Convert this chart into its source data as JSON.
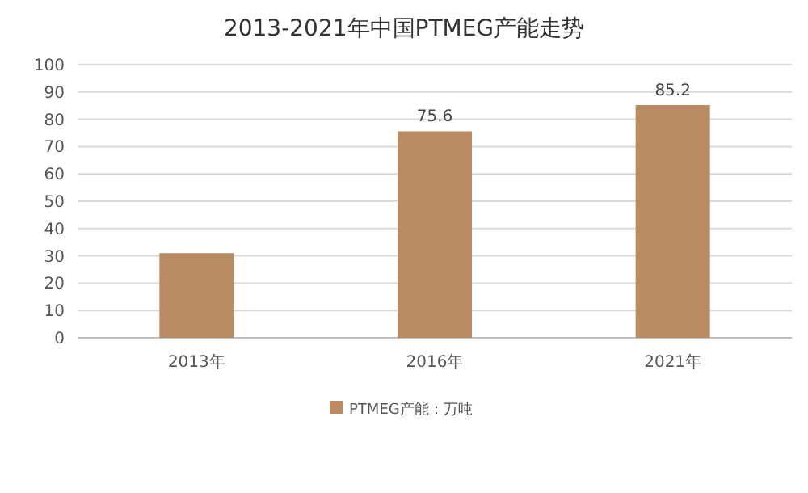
{
  "chart_data": {
    "type": "bar",
    "title": "2013-2021年中国PTMEG产能走势",
    "categories": [
      "2013年",
      "2016年",
      "2021年"
    ],
    "series": [
      {
        "name": "PTMEG产能：万吨",
        "color": "#b98b63",
        "values": [
          31,
          75.6,
          85.2
        ],
        "value_labels": [
          null,
          "75.6",
          "85.2"
        ]
      }
    ],
    "ylim": [
      0,
      100
    ],
    "yticks": [
      0,
      10,
      20,
      30,
      40,
      50,
      60,
      70,
      80,
      90,
      100
    ],
    "grid": "y",
    "legend": "bottom"
  }
}
